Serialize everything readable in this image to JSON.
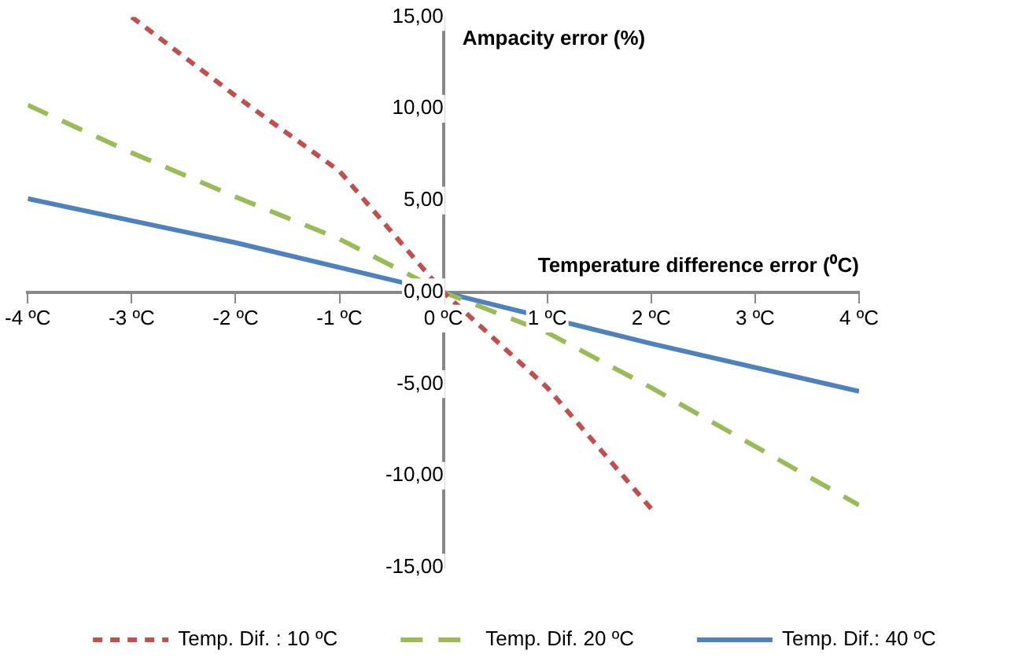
{
  "chart_data": {
    "type": "line",
    "xlabel": "Temperature difference error (⁰C)",
    "ylabel": "Ampacity error (%)",
    "xlim": [
      -4,
      4
    ],
    "xticks": [
      {
        "value": -4,
        "label": "-4 ºC"
      },
      {
        "value": -3,
        "label": "-3 ºC"
      },
      {
        "value": -2,
        "label": "-2 ºC"
      },
      {
        "value": -1,
        "label": "-1 ºC"
      },
      {
        "value": 0,
        "label": "0 ºC"
      },
      {
        "value": 1,
        "label": "1 ºC"
      },
      {
        "value": 2,
        "label": "2 ºC"
      },
      {
        "value": 3,
        "label": "3 ºC"
      },
      {
        "value": 4,
        "label": "4 ºC"
      }
    ],
    "ylim": [
      -15,
      15
    ],
    "yticks": [
      {
        "value": -15,
        "label": "-15,00"
      },
      {
        "value": -10,
        "label": "-10,00"
      },
      {
        "value": -5,
        "label": "-5,00"
      },
      {
        "value": 0,
        "label": "0,00"
      },
      {
        "value": 5,
        "label": "5,00"
      },
      {
        "value": 10,
        "label": "10,00"
      },
      {
        "value": 15,
        "label": "15,00"
      }
    ],
    "grid": false,
    "legend": "bottom",
    "marker": "none",
    "series": [
      {
        "name": "Temp. Dif. : 10 ºC",
        "color": "#c0504d",
        "line_style": "dotted",
        "x": [
          -3,
          -2,
          -1,
          0,
          1,
          2
        ],
        "values": [
          15,
          10.7,
          6.6,
          0,
          -5.2,
          -11.8
        ]
      },
      {
        "name": "Temp. Dif. 20 ºC",
        "color": "#9bbb59",
        "line_style": "dashed",
        "x": [
          -4,
          -3,
          -2,
          -1,
          0,
          1,
          2,
          3,
          4
        ],
        "values": [
          10.2,
          7.6,
          5.2,
          2.9,
          0,
          -2.2,
          -5.2,
          -8.4,
          -11.6
        ]
      },
      {
        "name": "Temp. Dif.: 40 ºC",
        "color": "#4f81bd",
        "line_style": "solid",
        "x": [
          -4,
          -2,
          0,
          2,
          4
        ],
        "values": [
          5.1,
          2.7,
          0,
          -2.8,
          -5.4
        ]
      }
    ]
  }
}
